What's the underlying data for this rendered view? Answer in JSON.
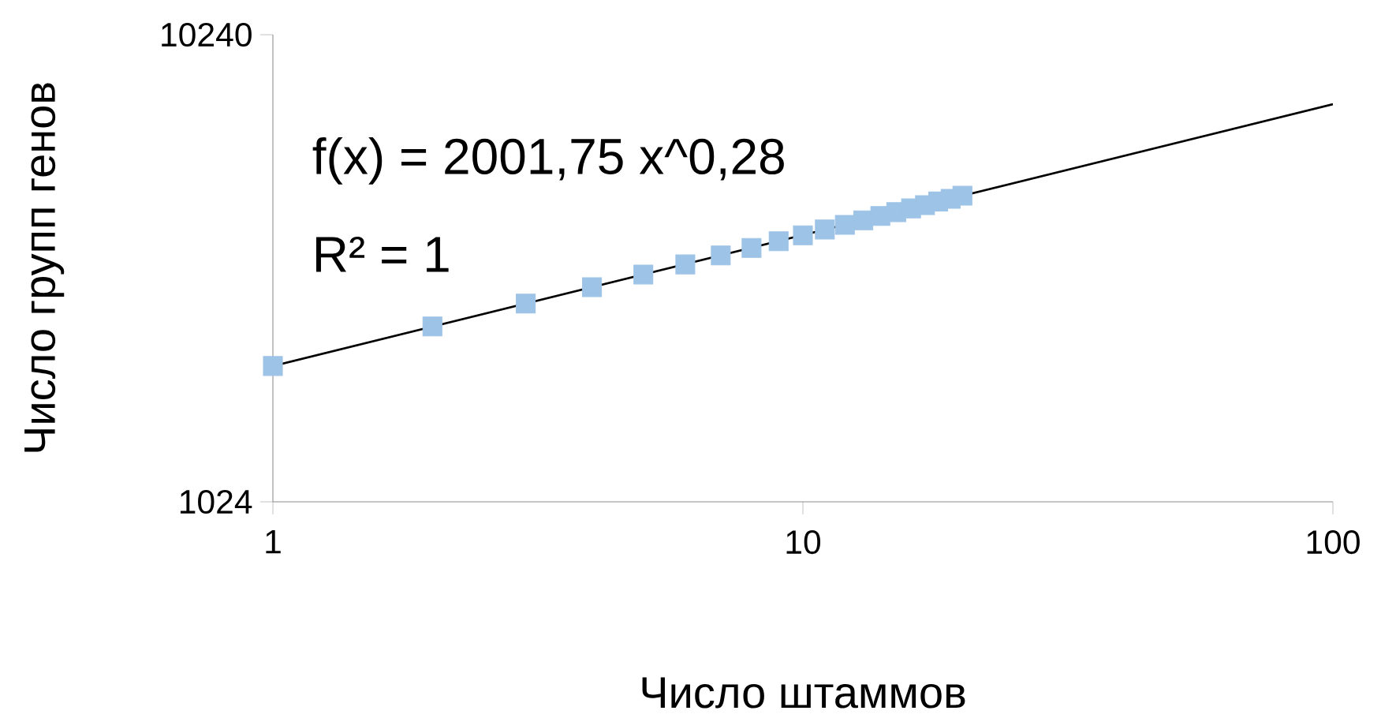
{
  "chart_data": {
    "type": "scatter",
    "xlabel": "Число штаммов",
    "ylabel": "Число групп генов",
    "log": "xy",
    "grid": false,
    "marker": "square",
    "xlim": [
      1,
      100
    ],
    "ylim": [
      1024,
      10240
    ],
    "xticks": [
      1,
      10,
      100
    ],
    "yticks": [
      1024,
      10240
    ],
    "annotations": [
      "f(x) = 2001,75 x^0,28",
      "R² = 1"
    ],
    "series": [
      {
        "color": "#9dc3e6",
        "x": [
          1,
          2,
          3,
          4,
          5,
          6,
          7,
          8,
          9,
          10,
          11,
          12,
          13,
          14,
          15,
          16,
          17,
          18,
          19,
          20
        ],
        "values": [
          2000,
          2430,
          2720,
          2950,
          3140,
          3300,
          3450,
          3580,
          3700,
          3810,
          3920,
          4010,
          4100,
          4190,
          4270,
          4350,
          4420,
          4500,
          4560,
          4630
        ]
      },
      {
        "type": "line",
        "color": "#000000",
        "marker": "none",
        "x": [
          1,
          100
        ],
        "values": [
          2000,
          7270
        ]
      }
    ]
  }
}
